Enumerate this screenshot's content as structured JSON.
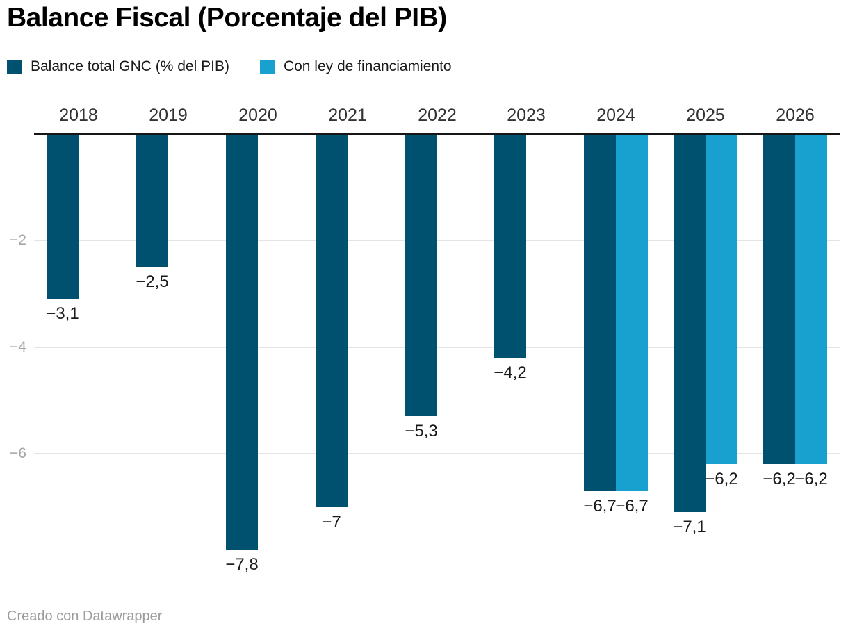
{
  "header": {
    "title": "Balance Fiscal (Porcentaje del PIB)"
  },
  "legend": {
    "items": [
      {
        "label": "Balance total GNC (% del PIB)",
        "color": "#00506F"
      },
      {
        "label": "Con ley de financiamiento",
        "color": "#18A0CE"
      }
    ]
  },
  "footer": {
    "text": "Creado con Datawrapper"
  },
  "colors": {
    "title": "#000000",
    "legend_text": "#1a1a1a",
    "baseline": "#161616",
    "gridline": "#e4e4e4",
    "tick_label": "#a5a5a5",
    "category_label": "#333333",
    "value_label": "#1a1a1a",
    "footer_text": "#9b9b9b",
    "series_dark": "#00506F",
    "series_light": "#18A0CE"
  },
  "chart_data": {
    "type": "bar",
    "title": "Balance Fiscal (Porcentaje del PIB)",
    "categories": [
      "2018",
      "2019",
      "2020",
      "2021",
      "2022",
      "2023",
      "2024",
      "2025",
      "2026"
    ],
    "series": [
      {
        "name": "Balance total GNC (% del PIB)",
        "color": "#00506F",
        "values": [
          -3.1,
          -2.5,
          -7.8,
          -7,
          -5.3,
          -4.2,
          -6.7,
          -7.1,
          -6.2
        ],
        "value_labels": [
          "−3,1",
          "−2,5",
          "−7,8",
          "−7",
          "−5,3",
          "−4,2",
          "−6,7",
          "−7,1",
          "−6,2"
        ]
      },
      {
        "name": "Con ley de financiamiento",
        "color": "#18A0CE",
        "values": [
          null,
          null,
          null,
          null,
          null,
          null,
          -6.7,
          -6.2,
          -6.2
        ],
        "value_labels": [
          null,
          null,
          null,
          null,
          null,
          null,
          "−6,7",
          "−6,2",
          "−6,2"
        ]
      }
    ],
    "y_axis": {
      "ticks": [
        {
          "value": -2,
          "label": "−2"
        },
        {
          "value": -4,
          "label": "−4"
        },
        {
          "value": -6,
          "label": "−6"
        }
      ],
      "range": [
        0,
        -8
      ]
    },
    "x_axis_position": "top",
    "grid": true,
    "legend_position": "top",
    "attribution": "Creado con Datawrapper"
  }
}
